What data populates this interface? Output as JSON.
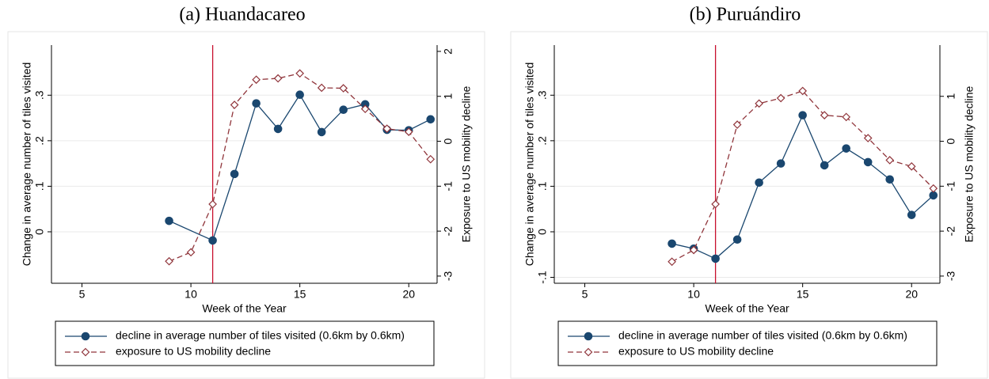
{
  "chart_data": [
    {
      "type": "line",
      "title": "(a) Huandacareo",
      "xlabel": "Week of the Year",
      "ylabel": "Change in average number of tiles visited",
      "y2label": "Exposure to US mobility decline",
      "xlim": [
        3.6,
        21.3
      ],
      "xticks": [
        5,
        10,
        15,
        20
      ],
      "ylim": [
        -0.113,
        0.41
      ],
      "yticks": [
        {
          "value": 0,
          "label": "0"
        },
        {
          "value": 0.1,
          "label": ".1"
        },
        {
          "value": 0.2,
          "label": ".2"
        },
        {
          "value": 0.3,
          "label": ".3"
        }
      ],
      "y2lim": [
        -3.16,
        2.14
      ],
      "y2ticks": [
        -3,
        -2,
        -1,
        0,
        1,
        2
      ],
      "grid": true,
      "vline": 11,
      "vline_color": "#c8102e",
      "series": [
        {
          "name": "decline in average number of tiles visited (0.6km by 0.6km)",
          "color": "#1a476f",
          "marker": "circle",
          "axis": "y",
          "x": [
            9,
            11,
            12,
            13,
            14,
            15,
            16,
            17,
            18,
            19,
            20,
            21
          ],
          "values": [
            0.024,
            -0.019,
            0.127,
            0.282,
            0.226,
            0.301,
            0.219,
            0.268,
            0.28,
            0.224,
            0.223,
            0.247
          ]
        },
        {
          "name": "exposure to US mobility decline",
          "color": "#90353b",
          "marker": "diamond",
          "dashed": true,
          "axis": "y2",
          "x": [
            9,
            10,
            11,
            12,
            13,
            14,
            15,
            16,
            17,
            18,
            19,
            20,
            21
          ],
          "values": [
            -2.67,
            -2.47,
            -1.4,
            0.81,
            1.37,
            1.4,
            1.51,
            1.19,
            1.18,
            0.72,
            0.28,
            0.21,
            -0.4
          ]
        }
      ]
    },
    {
      "type": "line",
      "title": "(b) Puruándiro",
      "xlabel": "Week of the Year",
      "ylabel": "Change in average number of tiles visited",
      "y2label": "Exposure to US mobility decline",
      "xlim": [
        3.6,
        21.3
      ],
      "xticks": [
        5,
        10,
        15,
        20
      ],
      "ylim": [
        -0.113,
        0.41
      ],
      "yticks": [
        {
          "value": -0.1,
          "label": "-.1"
        },
        {
          "value": 0,
          "label": "0"
        },
        {
          "value": 0.1,
          "label": ".1"
        },
        {
          "value": 0.2,
          "label": ".2"
        },
        {
          "value": 0.3,
          "label": ".3"
        }
      ],
      "y2lim": [
        -3.16,
        2.14
      ],
      "y2ticks": [
        -3,
        -2,
        -1,
        0,
        1
      ],
      "grid": true,
      "vline": 11,
      "vline_color": "#c8102e",
      "series": [
        {
          "name": "decline in average number of tiles visited (0.6km by 0.6km)",
          "color": "#1a476f",
          "marker": "circle",
          "axis": "y",
          "x": [
            9,
            10,
            11,
            12,
            13,
            14,
            15,
            16,
            17,
            18,
            19,
            20,
            21
          ],
          "values": [
            -0.026,
            -0.037,
            -0.059,
            -0.017,
            0.108,
            0.15,
            0.256,
            0.146,
            0.183,
            0.153,
            0.115,
            0.037,
            0.08
          ]
        },
        {
          "name": "exposure to US mobility decline",
          "color": "#90353b",
          "marker": "diamond",
          "dashed": true,
          "axis": "y2",
          "x": [
            9,
            10,
            11,
            12,
            13,
            14,
            15,
            16,
            17,
            18,
            19,
            20,
            21
          ],
          "values": [
            -2.68,
            -2.42,
            -1.4,
            0.37,
            0.84,
            0.96,
            1.12,
            0.58,
            0.54,
            0.07,
            -0.42,
            -0.56,
            -1.05
          ]
        }
      ]
    }
  ]
}
